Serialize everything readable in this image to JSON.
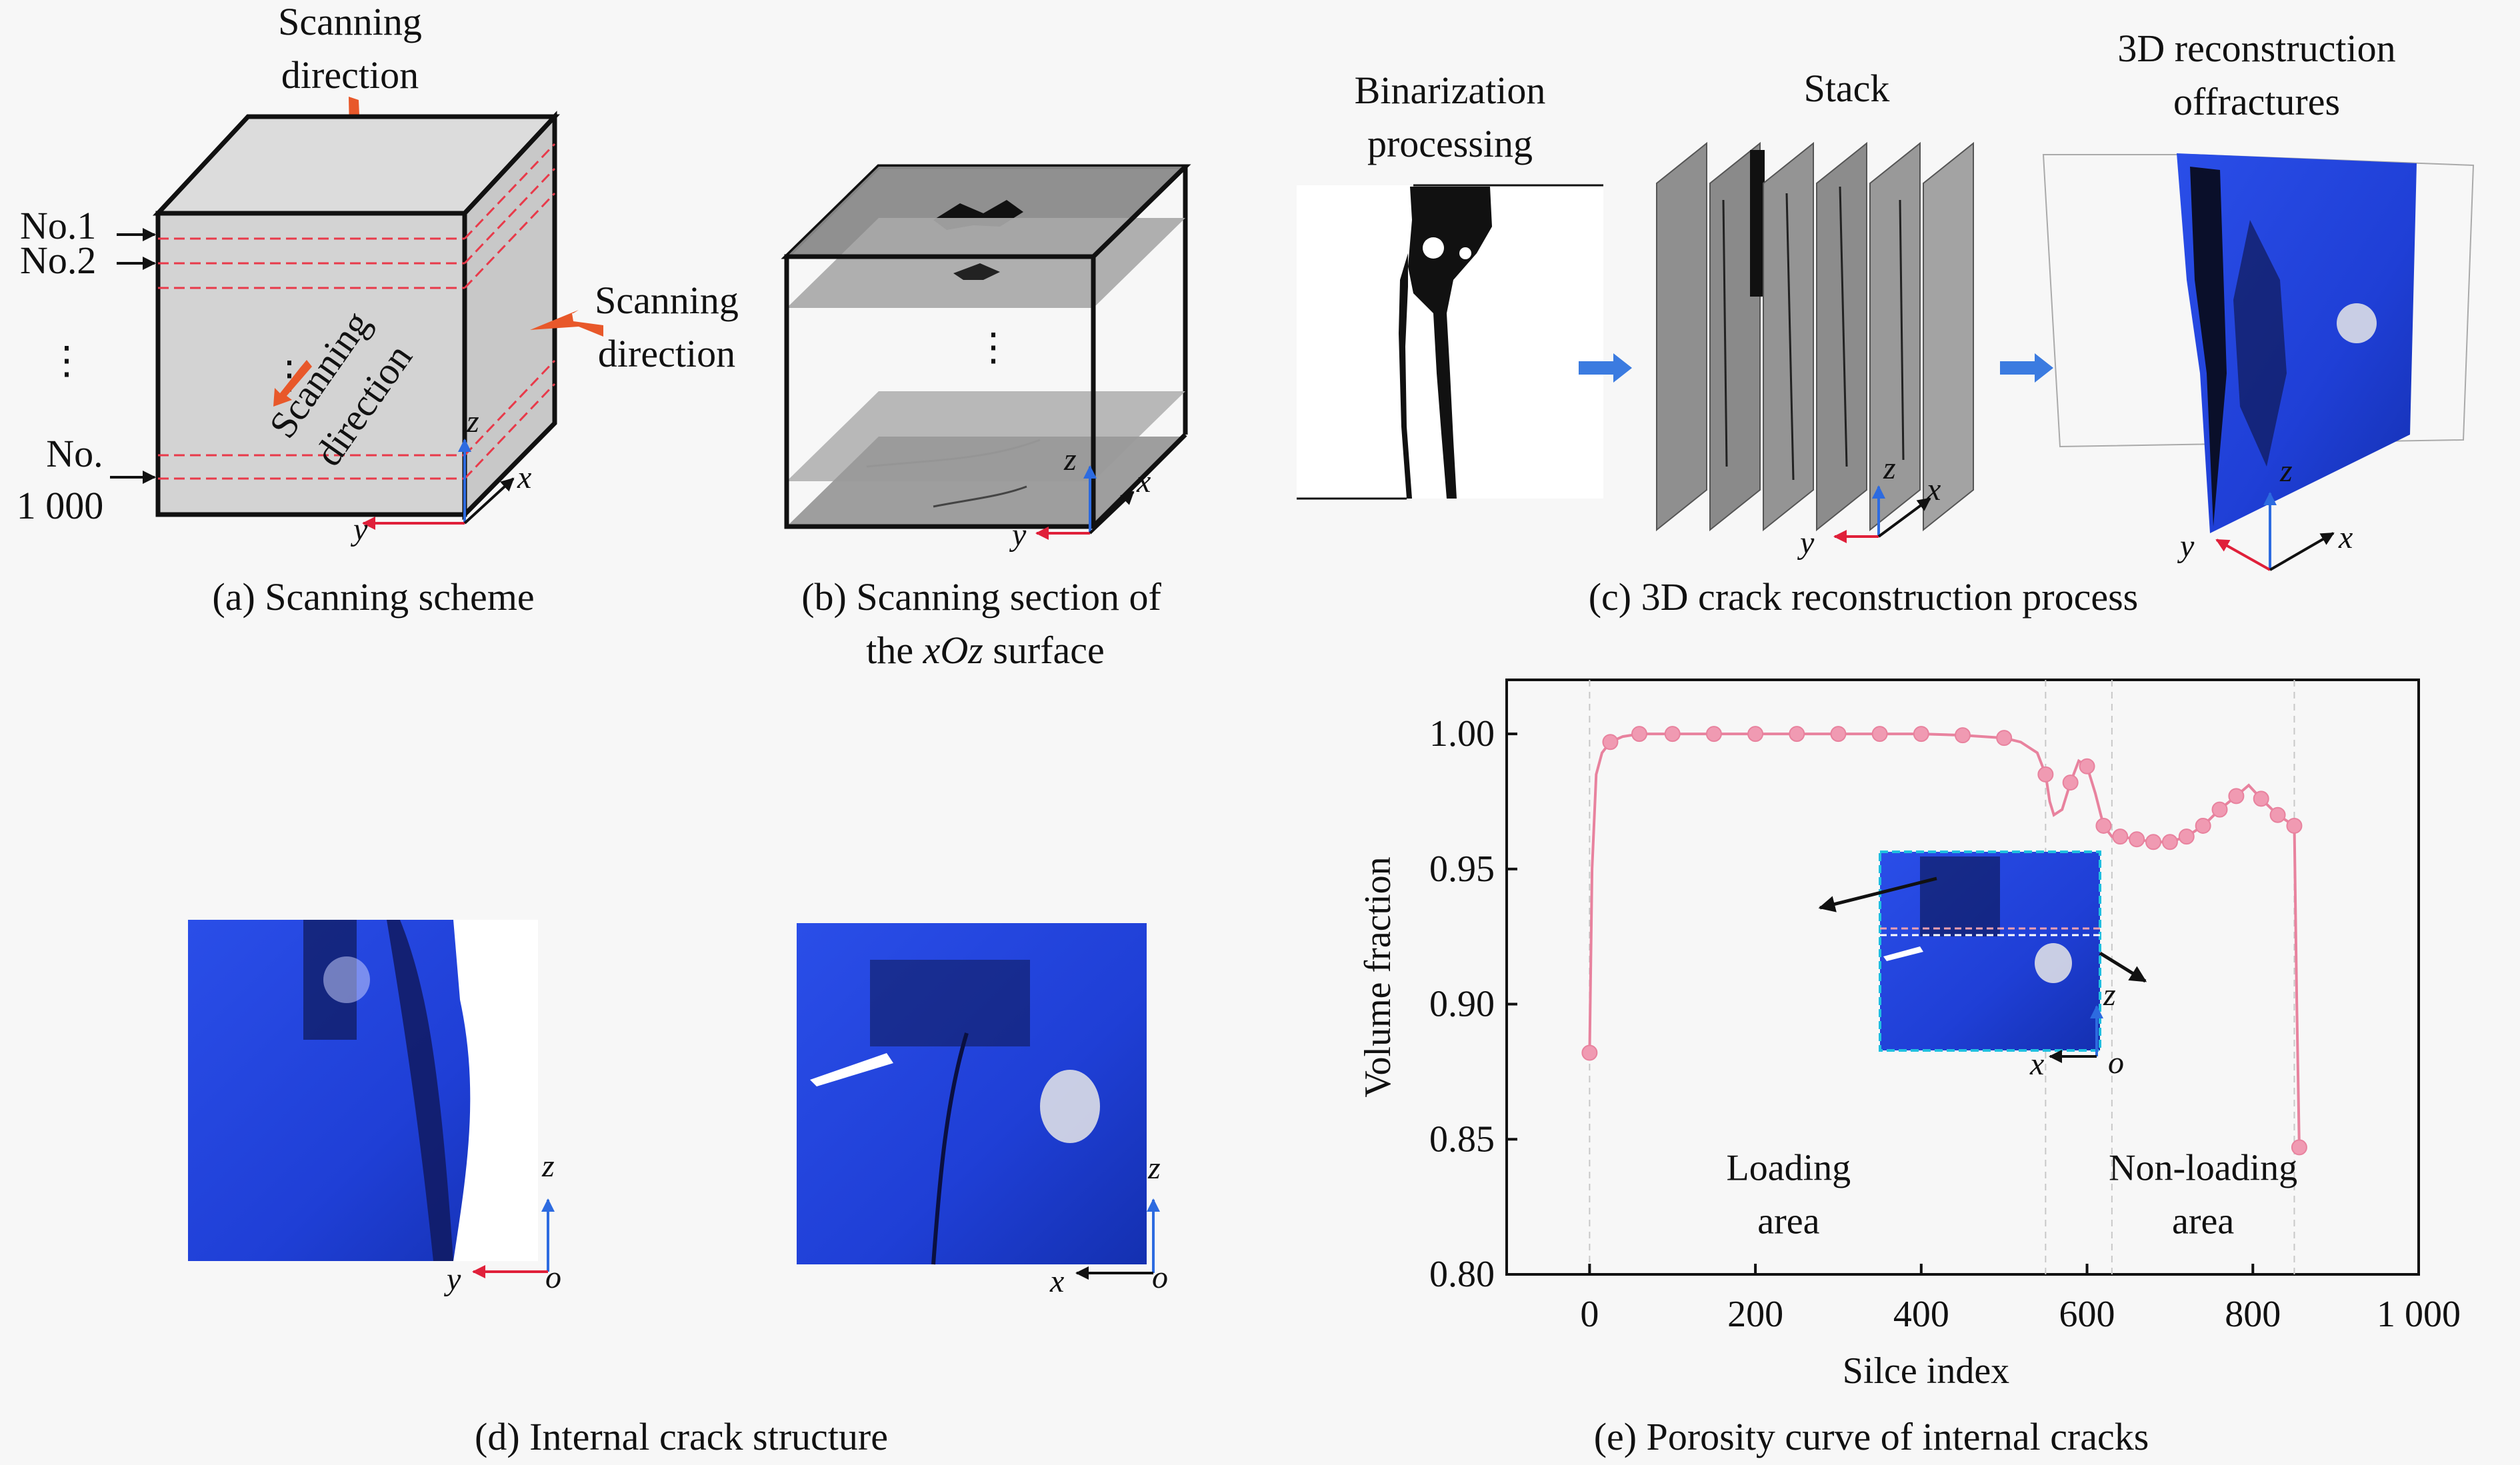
{
  "panel_a": {
    "scan_top": [
      "Scanning",
      "direction"
    ],
    "scan_right": [
      "Scanning",
      "direction"
    ],
    "scan_front": [
      "Scanning",
      "direction"
    ],
    "no1": "No.1",
    "no2": "No.2",
    "dots": "⋮",
    "no_last": [
      "No.",
      "1 000"
    ],
    "axis_z": "z",
    "axis_x": "x",
    "axis_y": "y",
    "caption": "(a) Scanning scheme"
  },
  "panel_b": {
    "dots": "⋮",
    "axis_z": "z",
    "axis_x": "x",
    "axis_y": "y",
    "caption_1": "(b) Scanning section of",
    "caption_2_pre": "the ",
    "caption_2_it": "xOz",
    "caption_2_post": " surface"
  },
  "panel_c": {
    "binarization": [
      "Binarization",
      "processing"
    ],
    "stack": "Stack",
    "recon": [
      "3D reconstruction",
      "offractures"
    ],
    "axis_z": "z",
    "axis_x": "x",
    "axis_y": "y",
    "caption": "(c) 3D crack reconstruction process"
  },
  "panel_d": {
    "left_axis_z": "z",
    "left_axis_y": "y",
    "left_axis_o": "o",
    "right_axis_z": "z",
    "right_axis_x": "x",
    "right_axis_o": "o",
    "caption": "(d) Internal crack structure"
  },
  "panel_e": {
    "caption": "(e) Porosity curve of internal cracks",
    "inset_axis_z": "z",
    "inset_axis_x": "x",
    "inset_axis_o": "o"
  },
  "colors": {
    "curve": "#e8829e",
    "marker": "#f09ab2",
    "crack_blue": "#1f3fd6",
    "arrow_orange": "#e8582a",
    "arrow_blue": "#3b7be0"
  },
  "chart_data": {
    "type": "line",
    "xlabel": "Silce index",
    "ylabel": "Volume fraction",
    "xlim": [
      -100,
      1000
    ],
    "ylim": [
      0.8,
      1.02
    ],
    "x_ticks": [
      0,
      200,
      400,
      600,
      800,
      1000
    ],
    "x_tick_labels": [
      "0",
      "200",
      "400",
      "600",
      "800",
      "1 000"
    ],
    "y_ticks": [
      0.8,
      0.85,
      0.9,
      0.95,
      1.0
    ],
    "y_tick_labels": [
      "0.80",
      "0.85",
      "0.90",
      "0.95",
      "1.00"
    ],
    "annotations": [
      {
        "x": 240,
        "y": 0.825,
        "lines": [
          "Loading",
          "area"
        ]
      },
      {
        "x": 740,
        "y": 0.825,
        "lines": [
          "Non-loading",
          "area"
        ]
      }
    ],
    "reference_lines_x": [
      0,
      550,
      630,
      850
    ],
    "series": [
      {
        "x": [
          0,
          3,
          8,
          15,
          25,
          40,
          60,
          100,
          150,
          200,
          250,
          300,
          350,
          400,
          450,
          500,
          520,
          540,
          550,
          555,
          560,
          570,
          580,
          590,
          600,
          610,
          620,
          630,
          640,
          660,
          680,
          700,
          720,
          740,
          760,
          780,
          795,
          810,
          830,
          850,
          853,
          856
        ],
        "y": [
          0.882,
          0.95,
          0.985,
          0.993,
          0.997,
          0.999,
          1.0,
          1.0,
          1.0,
          1.0,
          1.0,
          1.0,
          1.0,
          1.0,
          0.9995,
          0.9985,
          0.997,
          0.993,
          0.985,
          0.975,
          0.97,
          0.972,
          0.982,
          0.99,
          0.988,
          0.978,
          0.966,
          0.962,
          0.962,
          0.961,
          0.96,
          0.96,
          0.962,
          0.966,
          0.972,
          0.977,
          0.981,
          0.976,
          0.97,
          0.966,
          0.9,
          0.847
        ],
        "marker_x": [
          0,
          25,
          60,
          100,
          150,
          200,
          250,
          300,
          350,
          400,
          450,
          500,
          550,
          580,
          600,
          620,
          640,
          660,
          680,
          700,
          720,
          740,
          760,
          780,
          810,
          830,
          850,
          856
        ],
        "marker_y": [
          0.882,
          0.997,
          1.0,
          1.0,
          1.0,
          1.0,
          1.0,
          1.0,
          1.0,
          1.0,
          0.9995,
          0.9985,
          0.985,
          0.982,
          0.988,
          0.966,
          0.962,
          0.961,
          0.96,
          0.96,
          0.962,
          0.966,
          0.972,
          0.977,
          0.976,
          0.97,
          0.966,
          0.847
        ]
      }
    ]
  }
}
